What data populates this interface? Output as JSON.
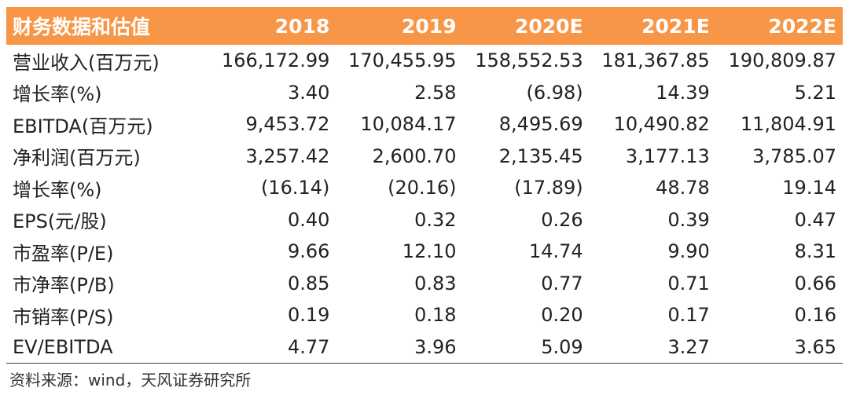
{
  "table": {
    "header": [
      "财务数据和估值",
      "2018",
      "2019",
      "2020E",
      "2021E",
      "2022E"
    ],
    "rows": [
      [
        "营业收入(百万元)",
        "166,172.99",
        "170,455.95",
        "158,552.53",
        "181,367.85",
        "190,809.87"
      ],
      [
        "增长率(%)",
        "3.40",
        "2.58",
        "(6.98)",
        "14.39",
        "5.21"
      ],
      [
        "EBITDA(百万元)",
        "9,453.72",
        "10,084.17",
        "8,495.69",
        "10,490.82",
        "11,804.91"
      ],
      [
        "净利润(百万元)",
        "3,257.42",
        "2,600.70",
        "2,135.45",
        "3,177.13",
        "3,785.07"
      ],
      [
        "增长率(%)",
        "(16.14)",
        "(20.16)",
        "(17.89)",
        "48.78",
        "19.14"
      ],
      [
        "EPS(元/股)",
        "0.40",
        "0.32",
        "0.26",
        "0.39",
        "0.47"
      ],
      [
        "市盈率(P/E)",
        "9.66",
        "12.10",
        "14.74",
        "9.90",
        "8.31"
      ],
      [
        "市净率(P/B)",
        "0.85",
        "0.83",
        "0.77",
        "0.71",
        "0.66"
      ],
      [
        "市销率(P/S)",
        "0.19",
        "0.18",
        "0.20",
        "0.17",
        "0.16"
      ],
      [
        "EV/EBITDA",
        "4.77",
        "3.96",
        "5.09",
        "3.27",
        "3.65"
      ]
    ]
  },
  "source": "资料来源：wind，天风证券研究所",
  "colors": {
    "header_bg": "#f79646",
    "header_text": "#ffffff"
  }
}
